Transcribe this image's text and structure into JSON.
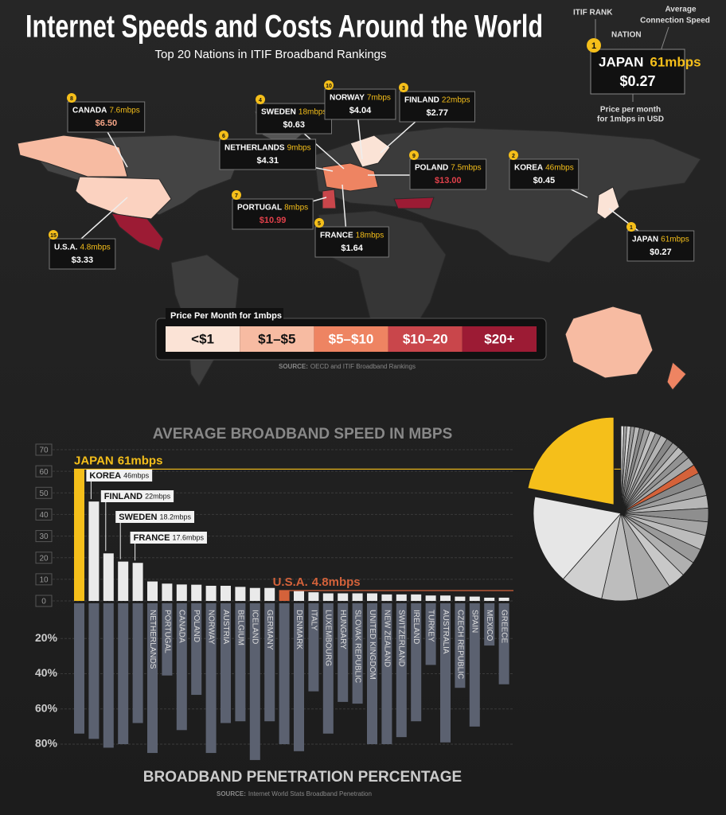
{
  "header": {
    "title": "Internet Speeds and Costs Around the World",
    "subtitle": "Top 20 Nations in ITIF Broadband Rankings"
  },
  "key": {
    "rank_label": "ITIF RANK",
    "nation_label": "NATION",
    "speed_label_1": "Average",
    "speed_label_2": "Connection Speed",
    "price_label_1": "Price per month",
    "price_label_2": "for 1mbps in USD",
    "example": {
      "rank": "1",
      "nation": "JAPAN",
      "speed": "61mbps",
      "price": "$0.27"
    }
  },
  "map": {
    "callouts": [
      {
        "rank": "8",
        "nation": "CANADA",
        "speed": "7.6mbps",
        "price": "$6.50",
        "price_color": "#f4a486"
      },
      {
        "rank": "4",
        "nation": "SWEDEN",
        "speed": "18mbps",
        "price": "$0.63",
        "price_color": "#ffffff"
      },
      {
        "rank": "10",
        "nation": "NORWAY",
        "speed": "7mbps",
        "price": "$4.04",
        "price_color": "#ffffff"
      },
      {
        "rank": "3",
        "nation": "FINLAND",
        "speed": "22mbps",
        "price": "$2.77",
        "price_color": "#ffffff"
      },
      {
        "rank": "6",
        "nation": "NETHERLANDS",
        "speed": "9mbps",
        "price": "$4.31",
        "price_color": "#ffffff"
      },
      {
        "rank": "9",
        "nation": "POLAND",
        "speed": "7.5mbps",
        "price": "$13.00",
        "price_color": "#e0404a"
      },
      {
        "rank": "2",
        "nation": "KOREA",
        "speed": "46mbps",
        "price": "$0.45",
        "price_color": "#ffffff"
      },
      {
        "rank": "7",
        "nation": "PORTUGAL",
        "speed": "8mbps",
        "price": "$10.99",
        "price_color": "#e0404a"
      },
      {
        "rank": "5",
        "nation": "FRANCE",
        "speed": "18mbps",
        "price": "$1.64",
        "price_color": "#ffffff"
      },
      {
        "rank": "15",
        "nation": "U.S.A.",
        "speed": "4.8mbps",
        "price": "$3.33",
        "price_color": "#ffffff"
      },
      {
        "rank": "1",
        "nation": "JAPAN",
        "speed": "61mbps",
        "price": "$0.27",
        "price_color": "#ffffff"
      }
    ],
    "legend": {
      "title": "Price Per Month for 1mbps",
      "items": [
        {
          "label": "<$1",
          "color": "#fbe3d6"
        },
        {
          "label": "$1–$5",
          "color": "#f7bba2"
        },
        {
          "label": "$5–$10",
          "color": "#ee8462"
        },
        {
          "label": "$10–20",
          "color": "#c9464b"
        },
        {
          "label": "$20+",
          "color": "#9c1b34"
        }
      ]
    },
    "source_prefix": "SOURCE:",
    "source": "OECD and ITIF Broadband Rankings"
  },
  "chart_data": [
    {
      "type": "bar",
      "title": "AVERAGE BROADBAND SPEED IN MBPS",
      "categories": [
        "JAPAN",
        "KOREA",
        "FINLAND",
        "SWEDEN",
        "FRANCE",
        "NETHERLANDS",
        "PORTUGAL",
        "CANADA",
        "POLAND",
        "NORWAY",
        "AUSTRIA",
        "BELGIUM",
        "ICELAND",
        "GERMANY",
        "U.S.A.",
        "DENMARK",
        "ITALY",
        "LUXEMBOURG",
        "HUNGARY",
        "SLOVAK REPUBLIC",
        "UNITED KINGDOM",
        "NEW ZEALAND",
        "SWITZERLAND",
        "IRELAND",
        "TURKEY",
        "AUSTRALIA",
        "CZECH REPUBLIC",
        "SPAIN",
        "MEXICO",
        "GREECE"
      ],
      "values": [
        61,
        46,
        22,
        18.2,
        17.6,
        9,
        8,
        7.6,
        7.5,
        7,
        7,
        6.5,
        6,
        6,
        4.8,
        4.5,
        4,
        3.5,
        3.5,
        3.5,
        3.5,
        3,
        3,
        3,
        2.5,
        2.5,
        2,
        2,
        1.5,
        1.5
      ],
      "value_labels": [
        "61mbps",
        "46mbps",
        "22mbps",
        "18.2mbps",
        "17.6mbps",
        null,
        null,
        null,
        null,
        null,
        null,
        null,
        null,
        null,
        "4.8mbps",
        null,
        null,
        null,
        null,
        null,
        null,
        null,
        null,
        null,
        null,
        null,
        null,
        null,
        null,
        null
      ],
      "colors": [
        "#f5bf1a",
        "#eaeaea",
        "#eaeaea",
        "#eaeaea",
        "#eaeaea",
        "#eaeaea",
        "#eaeaea",
        "#eaeaea",
        "#eaeaea",
        "#eaeaea",
        "#eaeaea",
        "#eaeaea",
        "#eaeaea",
        "#eaeaea",
        "#d4623a",
        "#eaeaea",
        "#eaeaea",
        "#eaeaea",
        "#eaeaea",
        "#eaeaea",
        "#eaeaea",
        "#eaeaea",
        "#eaeaea",
        "#eaeaea",
        "#eaeaea",
        "#eaeaea",
        "#eaeaea",
        "#eaeaea",
        "#eaeaea",
        "#eaeaea"
      ],
      "ylim": [
        0,
        70
      ],
      "yticks": [
        0,
        10,
        20,
        30,
        40,
        50,
        60,
        70
      ],
      "grid": true
    },
    {
      "type": "bar",
      "title": "BROADBAND PENETRATION PERCENTAGE",
      "source_prefix": "SOURCE:",
      "source": "Internet World Stats Broadband Penetration",
      "values": [
        74,
        77,
        82,
        80,
        68,
        85,
        41,
        72,
        52,
        85,
        68,
        67,
        89,
        67,
        80,
        84,
        50,
        74,
        56,
        57,
        80,
        80,
        76,
        67,
        35,
        79,
        48,
        70,
        24,
        46
      ],
      "color": "#5b6170",
      "ylim": [
        0,
        80
      ],
      "yticks": [
        {
          "value": 20,
          "label": "20%"
        },
        {
          "value": 40,
          "label": "40%"
        },
        {
          "value": 60,
          "label": "60%"
        },
        {
          "value": 80,
          "label": "80%"
        }
      ],
      "grid": true
    },
    {
      "type": "pie",
      "colors": [
        "#f5bf1a",
        "#e6e6e6",
        "#d0d0d0",
        "#bdbdbd",
        "#a9a9a9",
        "#c8c8c8",
        "#b0b0b0",
        "#9a9a9a",
        "#bcbcbc",
        "#a4a4a4",
        "#8e8e8e",
        "#b6b6b6",
        "#9e9e9e",
        "#888888",
        "#d4623a",
        "#a8a8a8",
        "#929292",
        "#bbbbbb",
        "#9d9d9d",
        "#878787",
        "#b3b3b3",
        "#979797",
        "#c0c0c0",
        "#a0a0a0",
        "#8a8a8a",
        "#b8b8b8",
        "#9b9b9b",
        "#cfcfcf",
        "#aaaaaa",
        "#dddddd"
      ]
    }
  ]
}
